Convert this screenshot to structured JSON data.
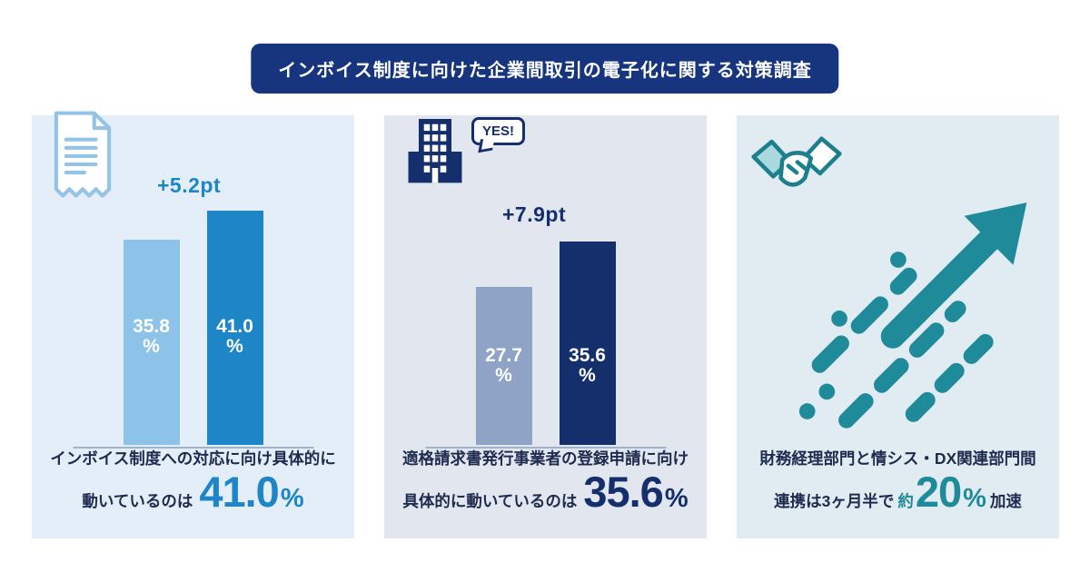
{
  "header": {
    "title": "インボイス制度に向けた企業間取引の電子化に関する対策調査"
  },
  "colors": {
    "badge_navy": "#16357e",
    "navy": "#142f6b",
    "blue": "#1e86c7",
    "light_blue": "#8dc3e8",
    "gray_blue": "#8fa3c7",
    "teal": "#1f8a99"
  },
  "panel1": {
    "delta": "+5.2pt",
    "bars": [
      {
        "label": "35.8",
        "unit": "%",
        "value": 35.8
      },
      {
        "label": "41.0",
        "unit": "%",
        "value": 41.0
      }
    ],
    "caption_line1": "インボイス制度への対応に向け具体的に",
    "caption_line2": "動いているのは",
    "big_number": "41.0",
    "big_unit": "%"
  },
  "panel2": {
    "speech": "YES!",
    "delta": "+7.9pt",
    "bars": [
      {
        "label": "27.7",
        "unit": "%",
        "value": 27.7
      },
      {
        "label": "35.6",
        "unit": "%",
        "value": 35.6
      }
    ],
    "caption_line1": "適格請求書発行事業者の登録申請に向け",
    "caption_line2": "具体的に動いているのは",
    "big_number": "35.6",
    "big_unit": "%"
  },
  "panel3": {
    "caption_line1": "財務経理部門と情シス・DX関連部門間",
    "caption_pre": "連携は3ヶ月半で",
    "approx": "約",
    "big_number": "20",
    "big_unit": "%",
    "caption_post": "加速"
  },
  "chart_data": [
    {
      "type": "bar",
      "title": "インボイス制度への対応に向け具体的に動いているのは41.0%",
      "values": [
        35.8,
        41.0
      ],
      "unit": "%",
      "delta": "+5.2pt",
      "series_colors": [
        "#8dc3e8",
        "#1e86c7"
      ],
      "ylim": [
        0,
        45
      ],
      "grid": false
    },
    {
      "type": "bar",
      "title": "適格請求書発行事業者の登録申請に向け具体的に動いているのは35.6%",
      "values": [
        27.7,
        35.6
      ],
      "unit": "%",
      "delta": "+7.9pt",
      "series_colors": [
        "#8fa3c7",
        "#142f6b"
      ],
      "ylim": [
        0,
        45
      ],
      "grid": false
    },
    {
      "type": "stat",
      "title": "財務経理部門と情シス・DX関連部門間連携は3ヶ月半で約20%加速",
      "value": 20,
      "unit": "%"
    }
  ]
}
